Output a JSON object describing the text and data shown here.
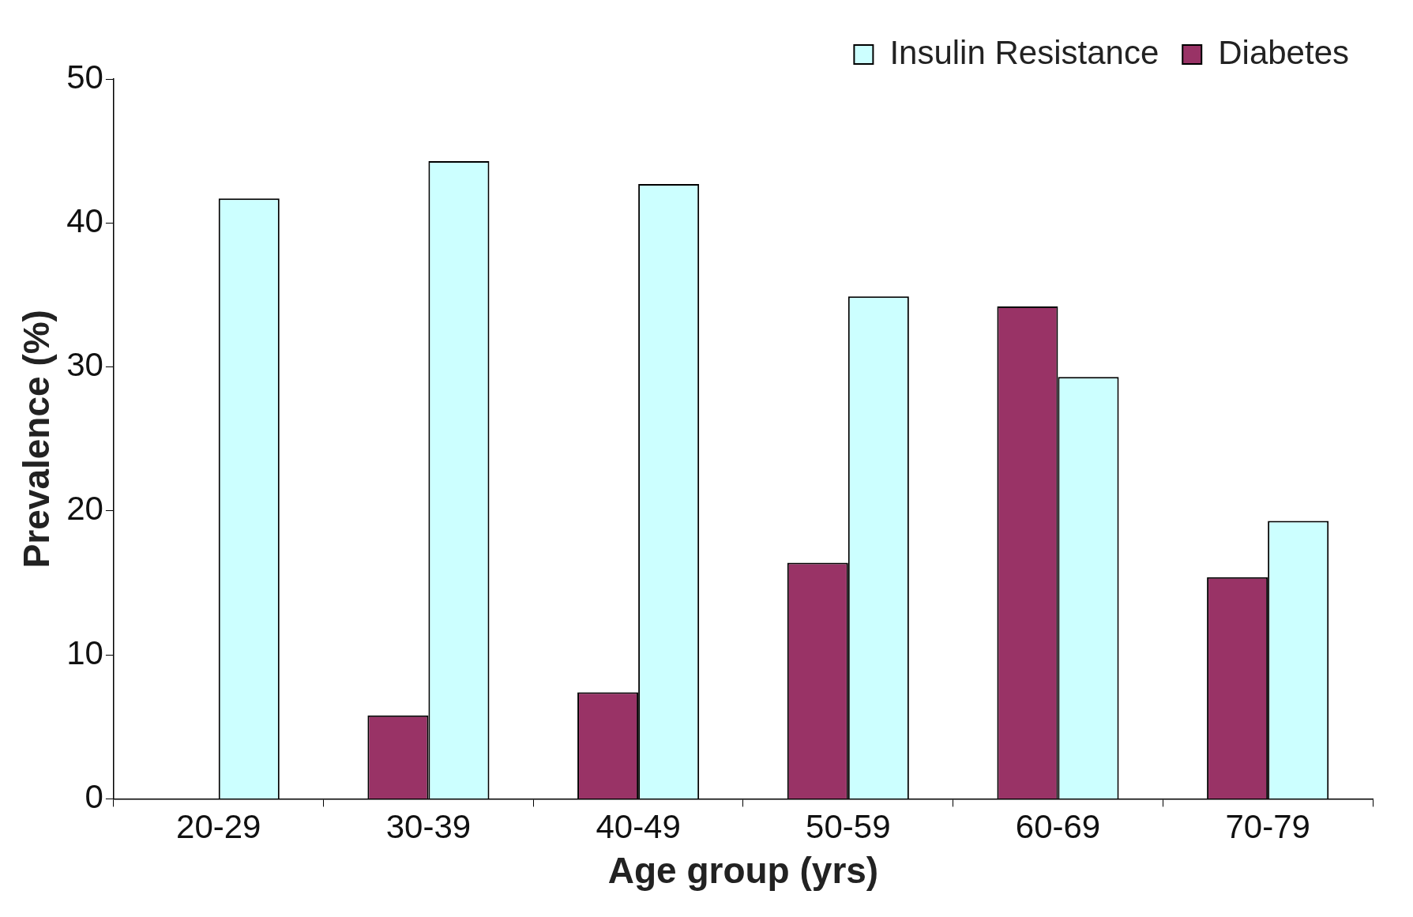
{
  "chart_data": {
    "type": "bar",
    "xlabel": "Age group (yrs)",
    "ylabel": "Prevalence (%)",
    "categories": [
      "20-29",
      "30-39",
      "40-49",
      "50-59",
      "60-69",
      "70-79"
    ],
    "series": [
      {
        "name": "Diabetes",
        "color": "#993366",
        "values": [
          0,
          5.8,
          7.4,
          16.4,
          34.2,
          15.4
        ]
      },
      {
        "name": "Insulin Resistance",
        "color": "#ccffff",
        "values": [
          41.7,
          44.3,
          42.7,
          34.9,
          29.3,
          19.3
        ]
      }
    ],
    "ylim": [
      0,
      50
    ],
    "yticks": [
      0,
      10,
      20,
      30,
      40,
      50
    ],
    "grid": false,
    "legend": "top right"
  }
}
